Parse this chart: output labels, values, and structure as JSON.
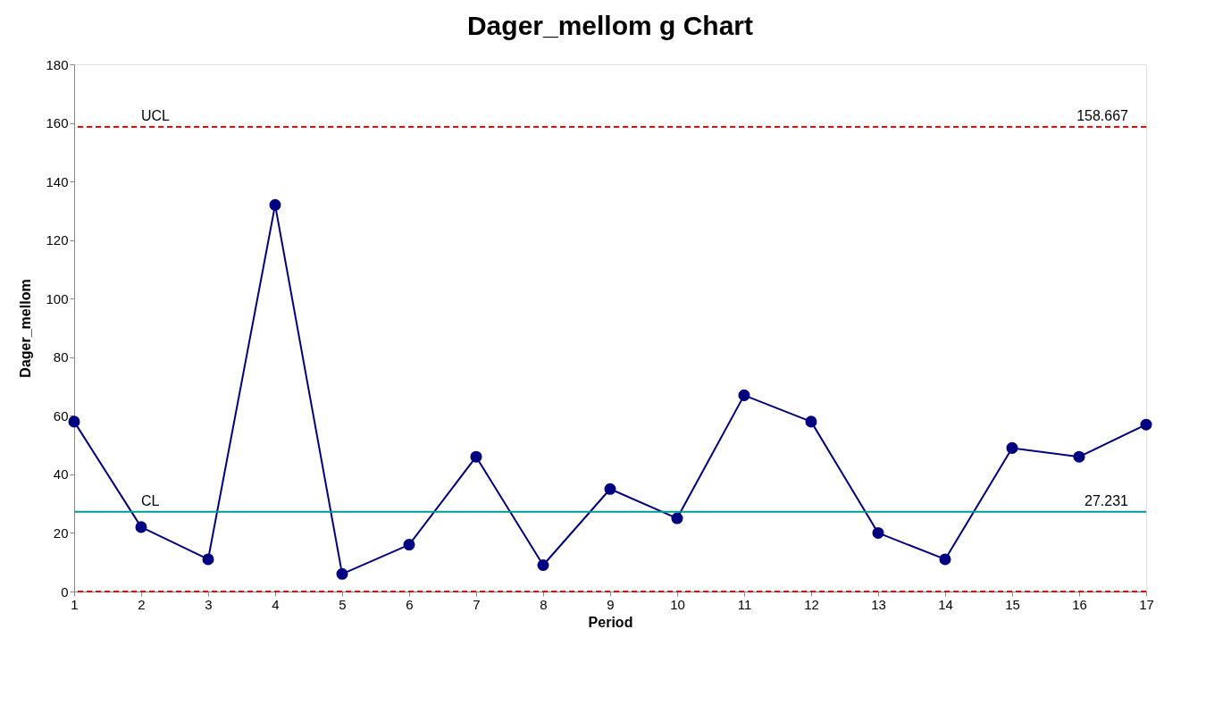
{
  "chart_data": {
    "type": "line",
    "title": "Dager_mellom g Chart",
    "xlabel": "Period",
    "ylabel": "Dager_mellom",
    "x": [
      1,
      2,
      3,
      4,
      5,
      6,
      7,
      8,
      9,
      10,
      11,
      12,
      13,
      14,
      15,
      16,
      17
    ],
    "series": [
      {
        "color": "#000080",
        "values": [
          58,
          22,
          11,
          132,
          6,
          16,
          46,
          9,
          35,
          25,
          67,
          58,
          20,
          11,
          49,
          46,
          57
        ]
      }
    ],
    "xlim": [
      1,
      17
    ],
    "xticks": [
      1,
      2,
      3,
      4,
      5,
      6,
      7,
      8,
      9,
      10,
      11,
      12,
      13,
      14,
      15,
      16,
      17
    ],
    "ylim": [
      0,
      180
    ],
    "yticks": [
      0,
      20,
      40,
      60,
      80,
      100,
      120,
      140,
      160,
      180
    ],
    "ref_lines": [
      {
        "axis": "y",
        "value": 158.667,
        "label": "UCL",
        "color": "#ff0000",
        "line_style": "dashed"
      },
      {
        "axis": "y",
        "value": 27.231,
        "label": "CL",
        "color": "#009999",
        "line_style": "solid"
      },
      {
        "axis": "y",
        "value": 0,
        "label": null,
        "color": "#ff0000",
        "line_style": "dashed"
      }
    ],
    "annotations": [
      {
        "text": "158.667",
        "x": 17,
        "y": 158.667
      },
      {
        "text": "27.231",
        "x": 17,
        "y": 27.231
      }
    ],
    "marker": "circle",
    "line_style": "solid",
    "grid": false
  }
}
